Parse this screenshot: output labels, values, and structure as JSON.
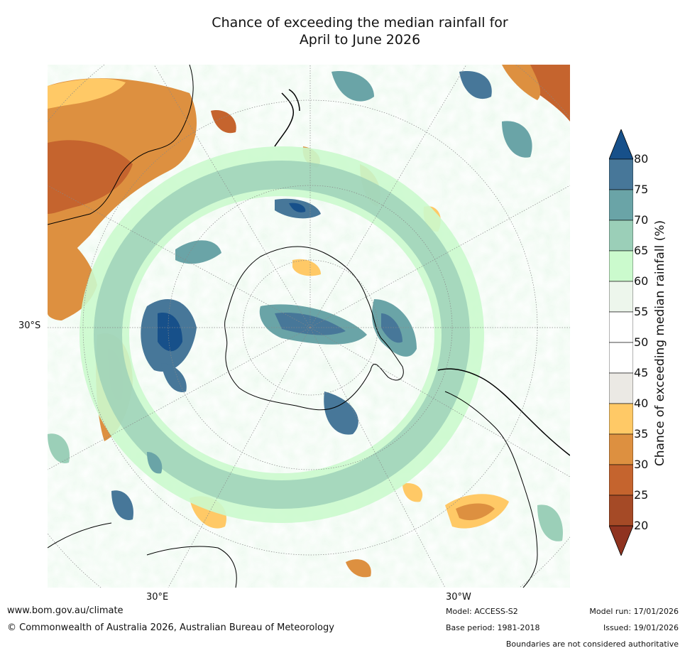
{
  "title_line1": "Chance of exceeding the median rainfall for",
  "title_line2": "April to June 2026",
  "map": {
    "projection": "south-polar-stereographic",
    "lat_label": "30°S",
    "lon_labels": [
      "30°E",
      "30°W"
    ],
    "colors": {
      "ocean_white": "#ffffff",
      "land_outline": "#000000",
      "grid_line": "#888888"
    }
  },
  "colorbar": {
    "label": "Chance of exceeding median rainfall (%)",
    "ticks": [
      "80",
      "75",
      "70",
      "65",
      "60",
      "55",
      "50",
      "45",
      "40",
      "35",
      "30",
      "25",
      "20"
    ],
    "bins": [
      {
        "range": "75-80",
        "color": "#477799"
      },
      {
        "range": "70-75",
        "color": "#6aa4a7"
      },
      {
        "range": "65-70",
        "color": "#9bcfb8"
      },
      {
        "range": "60-65",
        "color": "#cbfacd"
      },
      {
        "range": "55-60",
        "color": "#edf6ec"
      },
      {
        "range": "50-55",
        "color": "#ffffff"
      },
      {
        "range": "45-50",
        "color": "#ffffff"
      },
      {
        "range": "40-45",
        "color": "#ebe9e4"
      },
      {
        "range": "35-40",
        "color": "#ffc966"
      },
      {
        "range": "30-35",
        "color": "#dd9040"
      },
      {
        "range": "25-30",
        "color": "#c5642e"
      },
      {
        "range": "20-25",
        "color": "#a54a26"
      }
    ],
    "over_color": "#17508a",
    "under_color": "#8f3320"
  },
  "footer": {
    "website": "www.bom.gov.au/climate",
    "copyright": "© Commonwealth of Australia 2026, Australian Bureau of Meteorology",
    "model": "Model: ACCESS-S2",
    "base_period": "Base period: 1981-2018",
    "model_run": "Model run: 17/01/2026",
    "issued": "Issued: 19/01/2026",
    "disclaimer": "Boundaries are not considered authoritative"
  }
}
